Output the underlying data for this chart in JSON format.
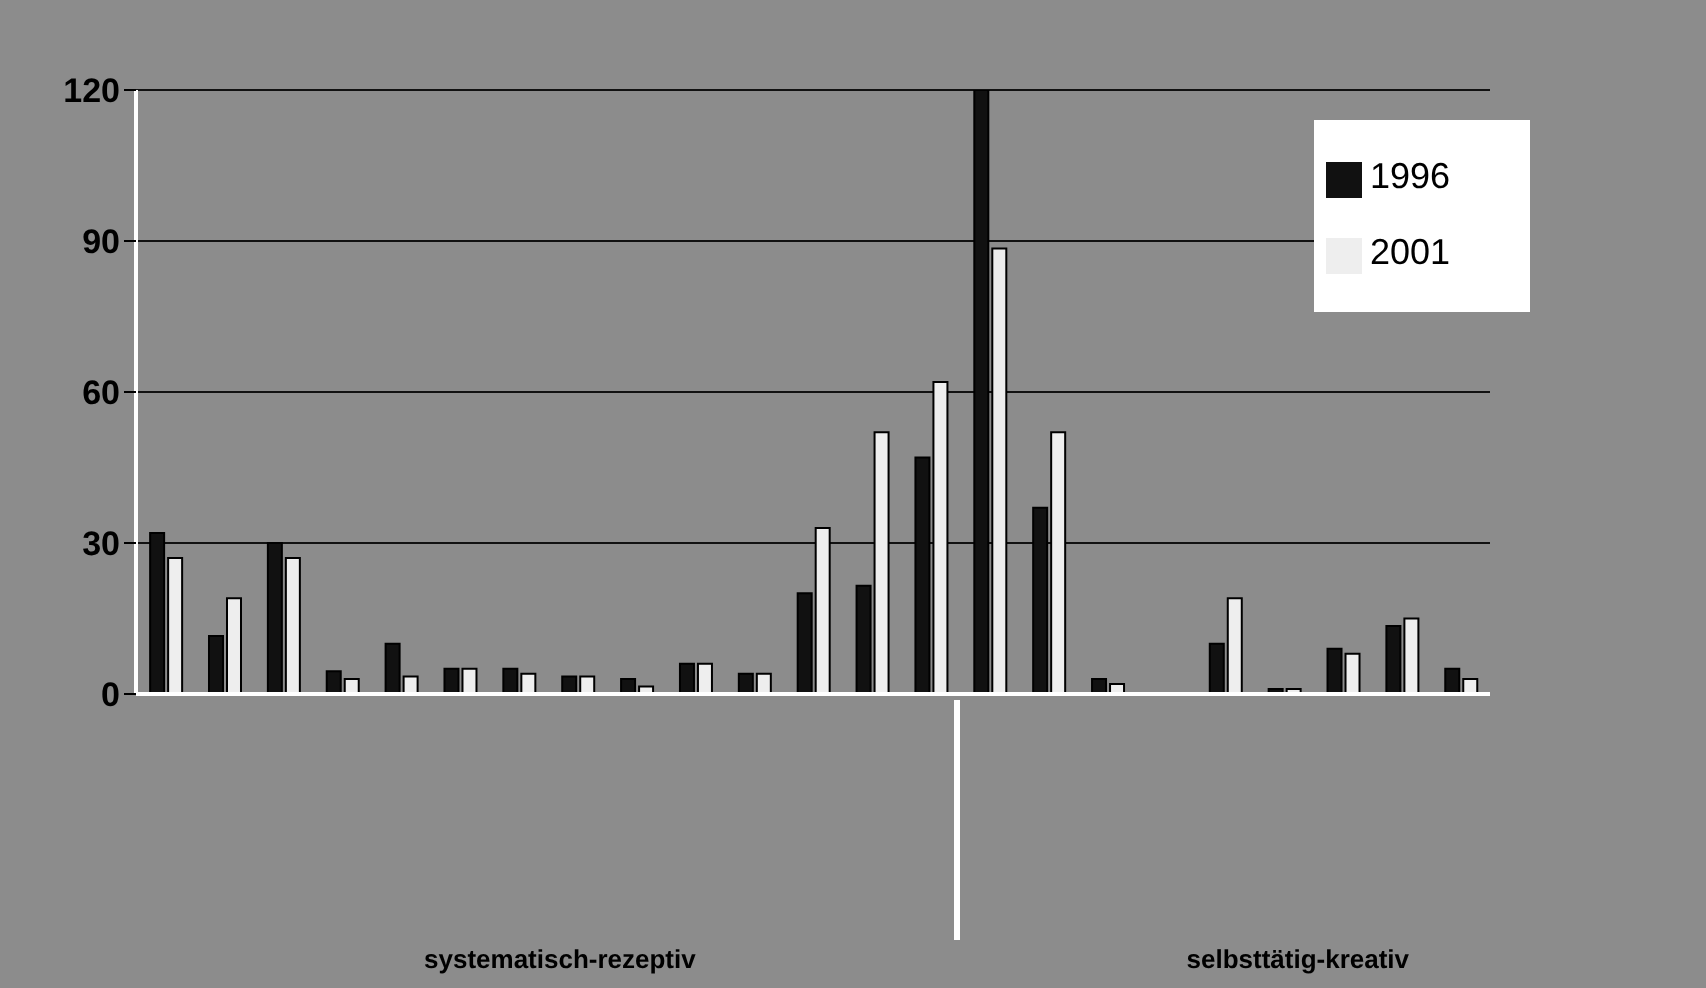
{
  "chart_data": {
    "type": "bar",
    "categories": [
      null,
      null,
      null,
      null,
      null,
      null,
      null,
      null,
      null,
      null,
      null,
      null,
      null,
      null,
      null,
      null,
      null,
      null,
      null,
      null,
      null,
      null,
      null
    ],
    "series": [
      {
        "name": "1996",
        "color": "#111111",
        "values": [
          32,
          11.5,
          30,
          4.5,
          10,
          5,
          5,
          3.5,
          3,
          6,
          4,
          20,
          21.5,
          47,
          120,
          37,
          3,
          0,
          10,
          1,
          9,
          13.5,
          5
        ]
      },
      {
        "name": "2001",
        "color": "#eeeeee",
        "values": [
          27,
          19,
          27,
          3,
          3.5,
          5,
          4,
          3.5,
          1.5,
          6,
          4,
          33,
          52,
          62,
          88.5,
          52,
          2,
          0,
          19,
          1,
          8,
          15,
          3
        ]
      }
    ],
    "ylim": [
      0,
      120
    ],
    "yticks": [
      0,
      30,
      60,
      90,
      120
    ],
    "grid": "y",
    "legend": "top right",
    "annotations": [
      "systematisch-rezeptiv",
      "selbsttätig-kreativ"
    ]
  }
}
